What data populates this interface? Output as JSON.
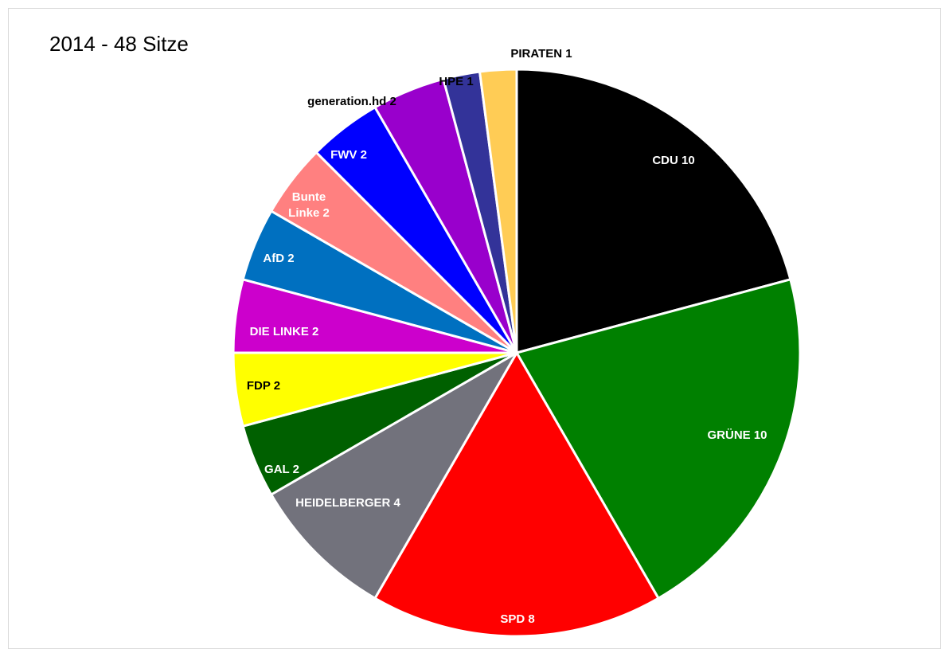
{
  "chart_data": {
    "type": "pie",
    "title": "2014 - 48 Sitze",
    "slices": [
      {
        "label": "CDU 10",
        "value": 10,
        "color": "#000000",
        "label_color": "#ffffff"
      },
      {
        "label": "GRÜNE  10",
        "value": 10,
        "color": "#008000",
        "label_color": "#ffffff"
      },
      {
        "label": "SPD 8",
        "value": 8,
        "color": "#ff0000",
        "label_color": "#ffffff"
      },
      {
        "label": "HEIDELBERGER  4",
        "value": 4,
        "color": "#72727c",
        "label_color": "#ffffff"
      },
      {
        "label": "GAL  2",
        "value": 2,
        "color": "#006000",
        "label_color": "#ffffff"
      },
      {
        "label": "FDP  2",
        "value": 2,
        "color": "#ffff00",
        "label_color": "#000000"
      },
      {
        "label": "DIE LINKE  2",
        "value": 2,
        "color": "#cc00cc",
        "label_color": "#ffffff"
      },
      {
        "label": "AfD 2",
        "value": 2,
        "color": "#0070c0",
        "label_color": "#ffffff"
      },
      {
        "label": "Bunte Linke 2",
        "value": 2,
        "color": "#ff8080",
        "label_color": "#ffffff"
      },
      {
        "label": "FWV 2",
        "value": 2,
        "color": "#0000ff",
        "label_color": "#ffffff"
      },
      {
        "label": "generation.hd 2",
        "value": 2,
        "color": "#9900cc",
        "label_color": "#000000"
      },
      {
        "label": "HPE 1",
        "value": 1,
        "color": "#333399",
        "label_color": "#000000"
      },
      {
        "label": "PIRATEN  1",
        "value": 1,
        "color": "#ffcc55",
        "label_color": "#000000"
      }
    ],
    "start_angle": "12 o'clock",
    "direction": "clockwise",
    "legend": "none"
  }
}
